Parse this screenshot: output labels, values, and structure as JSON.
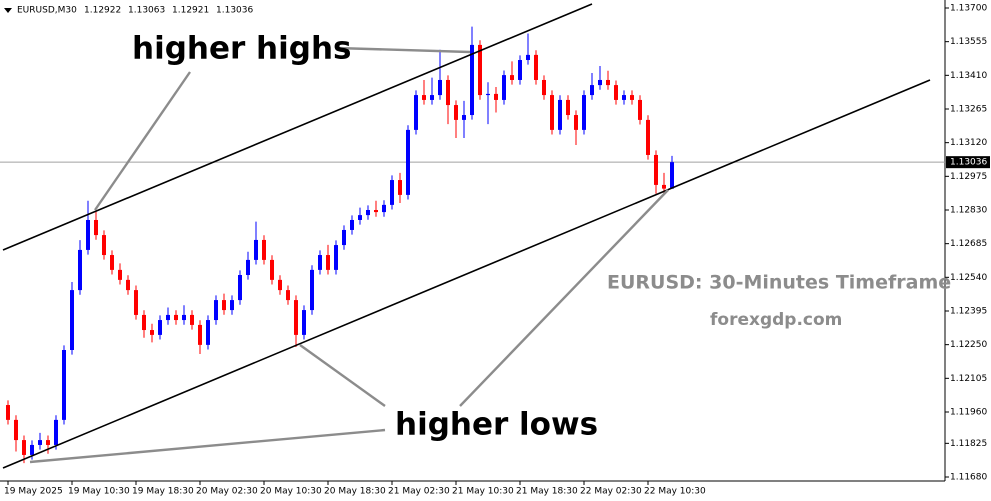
{
  "chart_data": {
    "type": "candlestick",
    "symbol": "EURUSD,M30",
    "header_values": [
      1.12922,
      1.13063,
      1.12921,
      1.13036
    ],
    "last_price": 1.13036,
    "annotations": [
      "higher highs",
      "higher lows",
      "EURUSD: 30-Minutes Timeframe",
      "forexgdp.com"
    ],
    "up_color": "#0000ff",
    "down_color": "#ff0000",
    "ylim": [
      1.1168,
      1.137
    ],
    "yticks": [
      {
        "value": 1.137,
        "label": "1.13700"
      },
      {
        "value": 1.13555,
        "label": "1.13555"
      },
      {
        "value": 1.1341,
        "label": "1.13410"
      },
      {
        "value": 1.13265,
        "label": "1.13265"
      },
      {
        "value": 1.1312,
        "label": "1.13120"
      },
      {
        "value": 1.12975,
        "label": "1.12975"
      },
      {
        "value": 1.1283,
        "label": "1.12830"
      },
      {
        "value": 1.12685,
        "label": "1.12685"
      },
      {
        "value": 1.1254,
        "label": "1.12540"
      },
      {
        "value": 1.12395,
        "label": "1.12395"
      },
      {
        "value": 1.1225,
        "label": "1.12250"
      },
      {
        "value": 1.12105,
        "label": "1.12105"
      },
      {
        "value": 1.1196,
        "label": "1.11960"
      },
      {
        "value": 1.11825,
        "label": "1.11825"
      },
      {
        "value": 1.1168,
        "label": "1.11680"
      }
    ],
    "xticks": [
      {
        "value": 0,
        "label": "19 May 2025"
      },
      {
        "value": 8,
        "label": "19 May 10:30"
      },
      {
        "value": 16,
        "label": "19 May 18:30"
      },
      {
        "value": 24,
        "label": "20 May 02:30"
      },
      {
        "value": 32,
        "label": "20 May 10:30"
      },
      {
        "value": 40,
        "label": "20 May 18:30"
      },
      {
        "value": 48,
        "label": "21 May 02:30"
      },
      {
        "value": 56,
        "label": "21 May 10:30"
      },
      {
        "value": 64,
        "label": "21 May 18:30"
      },
      {
        "value": 72,
        "label": "22 May 02:30"
      },
      {
        "value": 80,
        "label": "22 May 10:30"
      }
    ],
    "open": [
      1.1199,
      1.11926,
      1.11839,
      1.11775,
      1.11818,
      1.11839,
      1.11818,
      1.11926,
      1.12227,
      1.12485,
      1.12658,
      1.12787,
      1.12722,
      1.12636,
      1.12572,
      1.12529,
      1.12485,
      1.12378,
      1.12313,
      1.12292,
      1.12356,
      1.12378,
      1.12356,
      1.12378,
      1.12335,
      1.12249,
      1.12356,
      1.12442,
      1.12399,
      1.12442,
      1.1255,
      1.12615,
      1.12701,
      1.12615,
      1.12529,
      1.12485,
      1.12442,
      1.12292,
      1.12399,
      1.12572,
      1.12636,
      1.12572,
      1.12679,
      1.12744,
      1.12787,
      1.12808,
      1.1283,
      1.12821,
      1.12852,
      1.12959,
      1.12895,
      1.13175,
      1.13325,
      1.13304,
      1.13325,
      1.1339,
      1.13282,
      1.13218,
      1.13239,
      1.13541,
      1.13325,
      1.1333,
      1.13304,
      1.13411,
      1.1339,
      1.13476,
      1.13498,
      1.1339,
      1.13325,
      1.13175,
      1.13304,
      1.13239,
      1.13175,
      1.13325,
      1.13368,
      1.1339,
      1.13368,
      1.13304,
      1.13325,
      1.13304,
      1.13218,
      1.13067,
      1.12938,
      1.12922
    ],
    "high": [
      1.1201,
      1.11946,
      1.11859,
      1.11838,
      1.1187,
      1.11859,
      1.11946,
      1.12247,
      1.1252,
      1.127,
      1.1287,
      1.1283,
      1.12742,
      1.12656,
      1.126,
      1.12549,
      1.12505,
      1.12398,
      1.1234,
      1.12376,
      1.1241,
      1.12398,
      1.1242,
      1.12398,
      1.12355,
      1.12376,
      1.12462,
      1.1247,
      1.12462,
      1.1257,
      1.1265,
      1.1278,
      1.12721,
      1.12635,
      1.12549,
      1.12505,
      1.12462,
      1.12419,
      1.12592,
      1.12656,
      1.1268,
      1.12699,
      1.12764,
      1.12807,
      1.1284,
      1.1285,
      1.1287,
      1.12872,
      1.12979,
      1.1299,
      1.13195,
      1.13345,
      1.1339,
      1.134,
      1.1352,
      1.1341,
      1.13302,
      1.133,
      1.1362,
      1.13561,
      1.1338,
      1.1336,
      1.13431,
      1.1347,
      1.13496,
      1.1359,
      1.13518,
      1.1341,
      1.13345,
      1.13324,
      1.13324,
      1.13259,
      1.13345,
      1.1342,
      1.1345,
      1.1343,
      1.13388,
      1.13345,
      1.13345,
      1.13324,
      1.13238,
      1.13087,
      1.1299,
      1.13063
    ],
    "low": [
      1.11906,
      1.1179,
      1.1174,
      1.11755,
      1.11798,
      1.1178,
      1.11798,
      1.11906,
      1.12207,
      1.12465,
      1.12638,
      1.12702,
      1.12616,
      1.12552,
      1.12509,
      1.12465,
      1.12358,
      1.1228,
      1.1226,
      1.12272,
      1.12336,
      1.12336,
      1.12336,
      1.12315,
      1.1221,
      1.12229,
      1.12336,
      1.12379,
      1.12379,
      1.12422,
      1.1253,
      1.12595,
      1.12595,
      1.12509,
      1.12465,
      1.12422,
      1.1224,
      1.12272,
      1.12379,
      1.12552,
      1.12552,
      1.12552,
      1.12659,
      1.12724,
      1.12767,
      1.12788,
      1.12801,
      1.12801,
      1.12832,
      1.1286,
      1.12875,
      1.13155,
      1.13284,
      1.13284,
      1.13305,
      1.132,
      1.1314,
      1.1314,
      1.13219,
      1.13305,
      1.132,
      1.1325,
      1.13284,
      1.1337,
      1.1337,
      1.13456,
      1.1337,
      1.13305,
      1.13155,
      1.13155,
      1.13219,
      1.1311,
      1.13155,
      1.13305,
      1.13348,
      1.13348,
      1.13284,
      1.13284,
      1.13284,
      1.13198,
      1.13047,
      1.129,
      1.129,
      1.12921
    ],
    "close": [
      1.11926,
      1.11839,
      1.11775,
      1.11818,
      1.11839,
      1.11818,
      1.11926,
      1.12227,
      1.12485,
      1.12658,
      1.12787,
      1.12722,
      1.12636,
      1.12572,
      1.12529,
      1.12485,
      1.12378,
      1.12313,
      1.12292,
      1.12356,
      1.12378,
      1.12356,
      1.12378,
      1.12335,
      1.12249,
      1.12356,
      1.12442,
      1.12399,
      1.12442,
      1.1255,
      1.12615,
      1.12701,
      1.12615,
      1.12529,
      1.12485,
      1.12442,
      1.12292,
      1.12399,
      1.12572,
      1.12636,
      1.12572,
      1.12679,
      1.12744,
      1.12787,
      1.12808,
      1.1283,
      1.12821,
      1.12852,
      1.12959,
      1.12895,
      1.13175,
      1.13325,
      1.13304,
      1.13325,
      1.1339,
      1.13282,
      1.13218,
      1.13239,
      1.13541,
      1.13325,
      1.1333,
      1.13304,
      1.13411,
      1.1339,
      1.13476,
      1.13498,
      1.1339,
      1.13325,
      1.13175,
      1.13304,
      1.13239,
      1.13175,
      1.13325,
      1.13368,
      1.1339,
      1.13368,
      1.13304,
      1.13325,
      1.13304,
      1.13218,
      1.13067,
      1.12938,
      1.12922,
      1.13036
    ]
  }
}
